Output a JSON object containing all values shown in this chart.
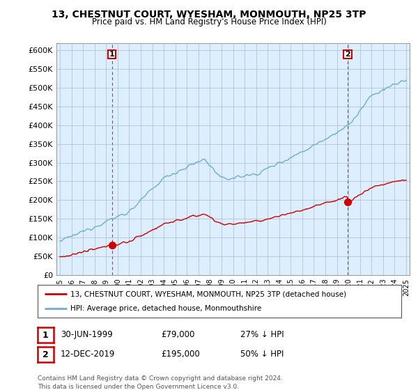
{
  "title": "13, CHESTNUT COURT, WYESHAM, MONMOUTH, NP25 3TP",
  "subtitle": "Price paid vs. HM Land Registry's House Price Index (HPI)",
  "ylabel_ticks": [
    "£0",
    "£50K",
    "£100K",
    "£150K",
    "£200K",
    "£250K",
    "£300K",
    "£350K",
    "£400K",
    "£450K",
    "£500K",
    "£550K",
    "£600K"
  ],
  "ytick_values": [
    0,
    50000,
    100000,
    150000,
    200000,
    250000,
    300000,
    350000,
    400000,
    450000,
    500000,
    550000,
    600000
  ],
  "ylim": [
    0,
    620000
  ],
  "hpi_color": "#6baed6",
  "price_color": "#cc0000",
  "legend_line1": "13, CHESTNUT COURT, WYESHAM, MONMOUTH, NP25 3TP (detached house)",
  "legend_line2": "HPI: Average price, detached house, Monmouthshire",
  "note1_num": "1",
  "note1_date": "30-JUN-1999",
  "note1_price": "£79,000",
  "note1_pct": "27% ↓ HPI",
  "note2_num": "2",
  "note2_date": "12-DEC-2019",
  "note2_price": "£195,000",
  "note2_pct": "50% ↓ HPI",
  "footer": "Contains HM Land Registry data © Crown copyright and database right 2024.\nThis data is licensed under the Open Government Licence v3.0.",
  "background_color": "#ffffff",
  "chart_bg_color": "#ddeeff",
  "grid_color": "#aabbcc",
  "sale1_year": 1999.5,
  "sale1_price": 79000,
  "sale2_year": 2019.92,
  "sale2_price": 195000
}
